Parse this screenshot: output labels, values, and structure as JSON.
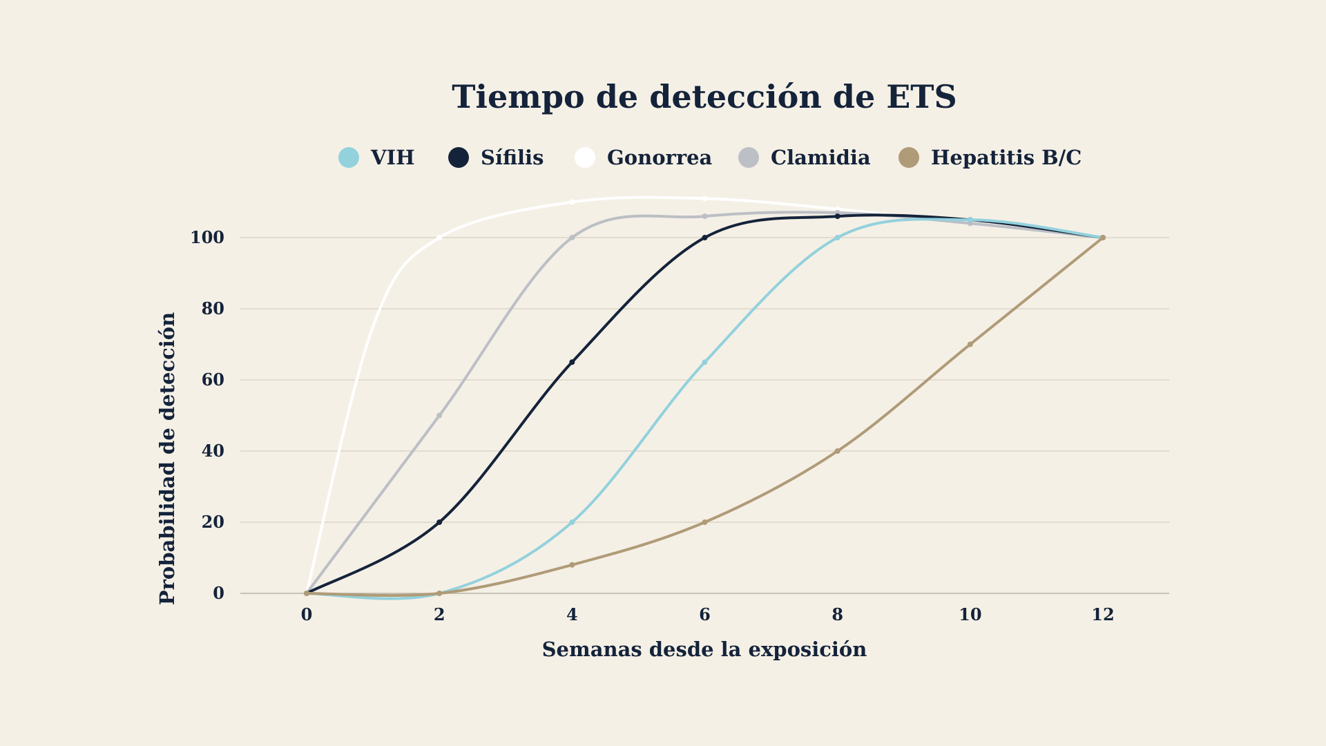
{
  "chart_data": {
    "type": "line",
    "title": "Tiempo de detección de ETS",
    "xlabel": "Semanas desde la exposición",
    "ylabel": "Probabilidad de detección",
    "x": [
      0,
      2,
      4,
      6,
      8,
      10,
      12
    ],
    "x_ticks": [
      "0",
      "2",
      "4",
      "6",
      "8",
      "10",
      "12"
    ],
    "y_ticks": [
      "0",
      "20",
      "40",
      "60",
      "80",
      "100"
    ],
    "xlim": [
      -1,
      13
    ],
    "ylim": [
      0,
      100
    ],
    "grid": true,
    "legend_position": "top-center",
    "series": [
      {
        "name": "VIH",
        "color": "#93d1dd",
        "x": [
          0,
          2,
          4,
          6,
          8,
          10,
          12
        ],
        "values": [
          0,
          0,
          20,
          65,
          100,
          105,
          100
        ]
      },
      {
        "name": "Sífilis",
        "color": "#14233a",
        "x": [
          0,
          2,
          4,
          6,
          8,
          10,
          12
        ],
        "values": [
          0,
          20,
          65,
          100,
          106,
          105,
          100
        ]
      },
      {
        "name": "Gonorrea",
        "color": "#ffffff",
        "x": [
          0,
          1,
          2,
          4,
          6,
          8,
          10,
          12
        ],
        "values": [
          0,
          75,
          100,
          110,
          111,
          108,
          104,
          100
        ]
      },
      {
        "name": "Clamidia",
        "color": "#bcbfc5",
        "x": [
          0,
          2,
          4,
          6,
          8,
          10,
          12
        ],
        "values": [
          0,
          50,
          100,
          106,
          107,
          104,
          100
        ]
      },
      {
        "name": "Hepatitis B/C",
        "color": "#b09b78",
        "x": [
          0,
          2,
          4,
          6,
          8,
          10,
          12
        ],
        "values": [
          0,
          0,
          8,
          20,
          40,
          70,
          100
        ]
      }
    ]
  }
}
